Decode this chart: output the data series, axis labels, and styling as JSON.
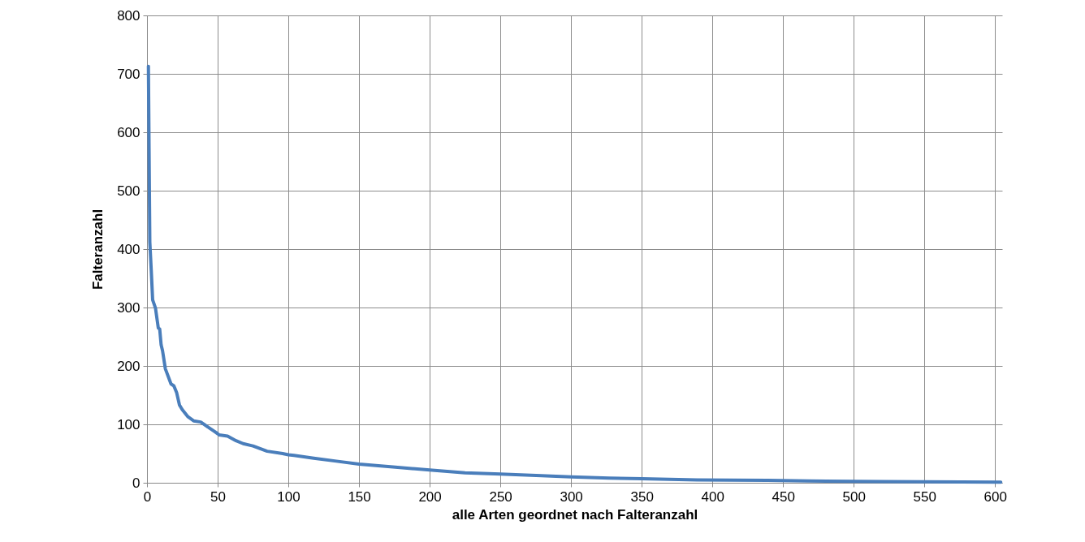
{
  "chart_data": {
    "type": "line",
    "xlabel": "alle Arten geordnet nach Falteranzahl",
    "ylabel": "Falteranzahl",
    "x": [
      1,
      2,
      3,
      4,
      6,
      8,
      9,
      10,
      11,
      13,
      17,
      19,
      21,
      23,
      25,
      29,
      33,
      38,
      44,
      47,
      50,
      51,
      57,
      63,
      68,
      75,
      85,
      96,
      100,
      104,
      118,
      134,
      150,
      174,
      200,
      225,
      250,
      279,
      300,
      327,
      350,
      389,
      439,
      468,
      520,
      604
    ],
    "series": [
      {
        "color": "#4a7ebb",
        "values": [
          713,
          412,
          364,
          313,
          299,
          265,
          263,
          236,
          226,
          195,
          169,
          166,
          154,
          133,
          125,
          113,
          106,
          104,
          94,
          89,
          84,
          82,
          80,
          72,
          67,
          63,
          54,
          50,
          48,
          47,
          42,
          37,
          32,
          27,
          22,
          17,
          15,
          12,
          10,
          8,
          7,
          5,
          4,
          3,
          2,
          1
        ]
      }
    ],
    "xlim": [
      0,
      605
    ],
    "ylim": [
      0,
      800
    ],
    "xticks": [
      0,
      50,
      100,
      150,
      200,
      250,
      300,
      350,
      400,
      450,
      500,
      550,
      600
    ],
    "yticks": [
      0,
      100,
      200,
      300,
      400,
      500,
      600,
      700,
      800
    ],
    "grid": true,
    "marker": "none",
    "line_style": "solid"
  }
}
